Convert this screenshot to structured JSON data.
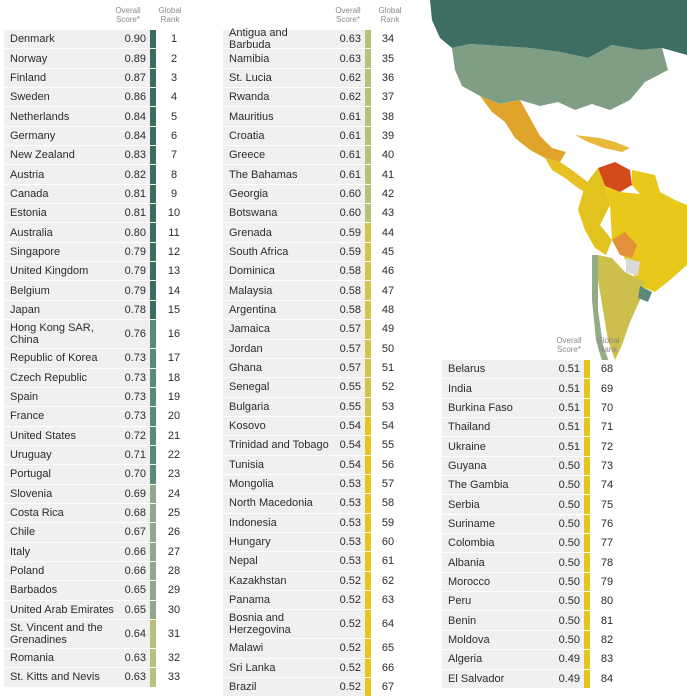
{
  "headers": {
    "score": "Overall Score*",
    "rank": "Global Rank"
  },
  "colors": {
    "t1": "#3d6b62",
    "t2": "#5b8a79",
    "t3": "#8fa98a",
    "t4": "#b9c07c",
    "t5": "#d9c344",
    "t6": "#e8c51a"
  },
  "col1": [
    {
      "name": "Denmark",
      "score": "0.90",
      "rank": "1",
      "tier": "t1"
    },
    {
      "name": "Norway",
      "score": "0.89",
      "rank": "2",
      "tier": "t1"
    },
    {
      "name": "Finland",
      "score": "0.87",
      "rank": "3",
      "tier": "t1"
    },
    {
      "name": "Sweden",
      "score": "0.86",
      "rank": "4",
      "tier": "t1"
    },
    {
      "name": "Netherlands",
      "score": "0.84",
      "rank": "5",
      "tier": "t1"
    },
    {
      "name": "Germany",
      "score": "0.84",
      "rank": "6",
      "tier": "t1"
    },
    {
      "name": "New Zealand",
      "score": "0.83",
      "rank": "7",
      "tier": "t1"
    },
    {
      "name": "Austria",
      "score": "0.82",
      "rank": "8",
      "tier": "t1"
    },
    {
      "name": "Canada",
      "score": "0.81",
      "rank": "9",
      "tier": "t1"
    },
    {
      "name": "Estonia",
      "score": "0.81",
      "rank": "10",
      "tier": "t1"
    },
    {
      "name": "Australia",
      "score": "0.80",
      "rank": "11",
      "tier": "t1"
    },
    {
      "name": "Singapore",
      "score": "0.79",
      "rank": "12",
      "tier": "t1"
    },
    {
      "name": "United Kingdom",
      "score": "0.79",
      "rank": "13",
      "tier": "t1"
    },
    {
      "name": "Belgium",
      "score": "0.79",
      "rank": "14",
      "tier": "t1"
    },
    {
      "name": "Japan",
      "score": "0.78",
      "rank": "15",
      "tier": "t1"
    },
    {
      "name": "Hong Kong SAR, China",
      "score": "0.76",
      "rank": "16",
      "tier": "t2",
      "tall": true
    },
    {
      "name": "Republic of Korea",
      "score": "0.73",
      "rank": "17",
      "tier": "t2"
    },
    {
      "name": "Czech Republic",
      "score": "0.73",
      "rank": "18",
      "tier": "t2"
    },
    {
      "name": "Spain",
      "score": "0.73",
      "rank": "19",
      "tier": "t2"
    },
    {
      "name": "France",
      "score": "0.73",
      "rank": "20",
      "tier": "t2"
    },
    {
      "name": "United States",
      "score": "0.72",
      "rank": "21",
      "tier": "t2"
    },
    {
      "name": "Uruguay",
      "score": "0.71",
      "rank": "22",
      "tier": "t2"
    },
    {
      "name": "Portugal",
      "score": "0.70",
      "rank": "23",
      "tier": "t2"
    },
    {
      "name": "Slovenia",
      "score": "0.69",
      "rank": "24",
      "tier": "t3"
    },
    {
      "name": "Costa Rica",
      "score": "0.68",
      "rank": "25",
      "tier": "t3"
    },
    {
      "name": "Chile",
      "score": "0.67",
      "rank": "26",
      "tier": "t3"
    },
    {
      "name": "Italy",
      "score": "0.66",
      "rank": "27",
      "tier": "t3"
    },
    {
      "name": "Poland",
      "score": "0.66",
      "rank": "28",
      "tier": "t3"
    },
    {
      "name": "Barbados",
      "score": "0.65",
      "rank": "29",
      "tier": "t3"
    },
    {
      "name": "United Arab Emirates",
      "score": "0.65",
      "rank": "30",
      "tier": "t3"
    },
    {
      "name": "St. Vincent and the Grenadines",
      "score": "0.64",
      "rank": "31",
      "tier": "t4",
      "tall": true
    },
    {
      "name": "Romania",
      "score": "0.63",
      "rank": "32",
      "tier": "t4"
    },
    {
      "name": "St. Kitts and Nevis",
      "score": "0.63",
      "rank": "33",
      "tier": "t4"
    }
  ],
  "col2": [
    {
      "name": "Antigua and Barbuda",
      "score": "0.63",
      "rank": "34",
      "tier": "t4"
    },
    {
      "name": "Namibia",
      "score": "0.63",
      "rank": "35",
      "tier": "t4"
    },
    {
      "name": "St. Lucia",
      "score": "0.62",
      "rank": "36",
      "tier": "t4"
    },
    {
      "name": "Rwanda",
      "score": "0.62",
      "rank": "37",
      "tier": "t4"
    },
    {
      "name": "Mauritius",
      "score": "0.61",
      "rank": "38",
      "tier": "t4"
    },
    {
      "name": "Croatia",
      "score": "0.61",
      "rank": "39",
      "tier": "t4"
    },
    {
      "name": "Greece",
      "score": "0.61",
      "rank": "40",
      "tier": "t4"
    },
    {
      "name": "The Bahamas",
      "score": "0.61",
      "rank": "41",
      "tier": "t4"
    },
    {
      "name": "Georgia",
      "score": "0.60",
      "rank": "42",
      "tier": "t4"
    },
    {
      "name": "Botswana",
      "score": "0.60",
      "rank": "43",
      "tier": "t4"
    },
    {
      "name": "Grenada",
      "score": "0.59",
      "rank": "44",
      "tier": "t5"
    },
    {
      "name": "South Africa",
      "score": "0.59",
      "rank": "45",
      "tier": "t5"
    },
    {
      "name": "Dominica",
      "score": "0.58",
      "rank": "46",
      "tier": "t5"
    },
    {
      "name": "Malaysia",
      "score": "0.58",
      "rank": "47",
      "tier": "t5"
    },
    {
      "name": "Argentina",
      "score": "0.58",
      "rank": "48",
      "tier": "t5"
    },
    {
      "name": "Jamaica",
      "score": "0.57",
      "rank": "49",
      "tier": "t5"
    },
    {
      "name": "Jordan",
      "score": "0.57",
      "rank": "50",
      "tier": "t5"
    },
    {
      "name": "Ghana",
      "score": "0.57",
      "rank": "51",
      "tier": "t5"
    },
    {
      "name": "Senegal",
      "score": "0.55",
      "rank": "52",
      "tier": "t5"
    },
    {
      "name": "Bulgaria",
      "score": "0.55",
      "rank": "53",
      "tier": "t5"
    },
    {
      "name": "Kosovo",
      "score": "0.54",
      "rank": "54",
      "tier": "t6"
    },
    {
      "name": "Trinidad and Tobago",
      "score": "0.54",
      "rank": "55",
      "tier": "t6"
    },
    {
      "name": "Tunisia",
      "score": "0.54",
      "rank": "56",
      "tier": "t6"
    },
    {
      "name": "Mongolia",
      "score": "0.53",
      "rank": "57",
      "tier": "t6"
    },
    {
      "name": "North Macedonia",
      "score": "0.53",
      "rank": "58",
      "tier": "t6"
    },
    {
      "name": "Indonesia",
      "score": "0.53",
      "rank": "59",
      "tier": "t6"
    },
    {
      "name": "Hungary",
      "score": "0.53",
      "rank": "60",
      "tier": "t6"
    },
    {
      "name": "Nepal",
      "score": "0.53",
      "rank": "61",
      "tier": "t6"
    },
    {
      "name": "Kazakhstan",
      "score": "0.52",
      "rank": "62",
      "tier": "t6"
    },
    {
      "name": "Panama",
      "score": "0.52",
      "rank": "63",
      "tier": "t6"
    },
    {
      "name": "Bosnia and Herzegovina",
      "score": "0.52",
      "rank": "64",
      "tier": "t6",
      "tall": true
    },
    {
      "name": "Malawi",
      "score": "0.52",
      "rank": "65",
      "tier": "t6"
    },
    {
      "name": "Sri Lanka",
      "score": "0.52",
      "rank": "66",
      "tier": "t6"
    },
    {
      "name": "Brazil",
      "score": "0.52",
      "rank": "67",
      "tier": "t6"
    }
  ],
  "col3": [
    {
      "name": "Belarus",
      "score": "0.51",
      "rank": "68",
      "tier": "t6"
    },
    {
      "name": "India",
      "score": "0.51",
      "rank": "69",
      "tier": "t6"
    },
    {
      "name": "Burkina Faso",
      "score": "0.51",
      "rank": "70",
      "tier": "t6"
    },
    {
      "name": "Thailand",
      "score": "0.51",
      "rank": "71",
      "tier": "t6"
    },
    {
      "name": "Ukraine",
      "score": "0.51",
      "rank": "72",
      "tier": "t6"
    },
    {
      "name": "Guyana",
      "score": "0.50",
      "rank": "73",
      "tier": "t6"
    },
    {
      "name": "The Gambia",
      "score": "0.50",
      "rank": "74",
      "tier": "t6"
    },
    {
      "name": "Serbia",
      "score": "0.50",
      "rank": "75",
      "tier": "t6"
    },
    {
      "name": "Suriname",
      "score": "0.50",
      "rank": "76",
      "tier": "t6"
    },
    {
      "name": "Colombia",
      "score": "0.50",
      "rank": "77",
      "tier": "t6"
    },
    {
      "name": "Albania",
      "score": "0.50",
      "rank": "78",
      "tier": "t6"
    },
    {
      "name": "Morocco",
      "score": "0.50",
      "rank": "79",
      "tier": "t6"
    },
    {
      "name": "Peru",
      "score": "0.50",
      "rank": "80",
      "tier": "t6"
    },
    {
      "name": "Benin",
      "score": "0.50",
      "rank": "81",
      "tier": "t6"
    },
    {
      "name": "Moldova",
      "score": "0.50",
      "rank": "82",
      "tier": "t6"
    },
    {
      "name": "Algeria",
      "score": "0.49",
      "rank": "83",
      "tier": "t6"
    },
    {
      "name": "El Salvador",
      "score": "0.49",
      "rank": "84",
      "tier": "t6"
    }
  ]
}
